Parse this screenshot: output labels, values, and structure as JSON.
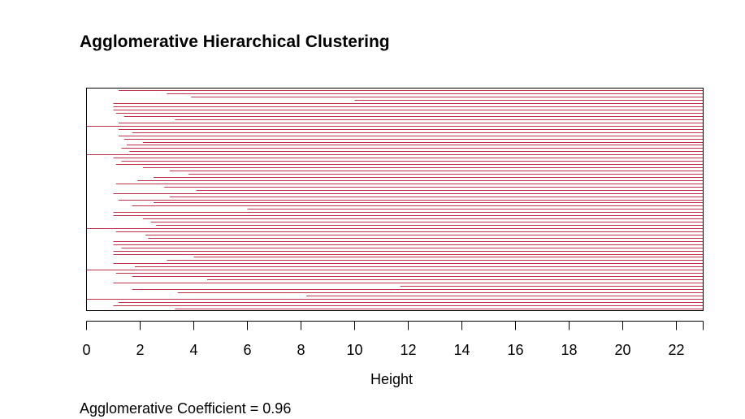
{
  "chart_data": {
    "type": "banner",
    "title": "Agglomerative Hierarchical Clustering",
    "xlabel": "Height",
    "xlim": [
      0,
      23
    ],
    "xticks": [
      0,
      2,
      4,
      6,
      8,
      10,
      12,
      14,
      16,
      18,
      20,
      22
    ],
    "tick_labels": [
      "0",
      "2",
      "4",
      "6",
      "8",
      "10",
      "12",
      "14",
      "16",
      "18",
      "20",
      "22"
    ],
    "bar_color": "#c0304a",
    "max_height": 23,
    "merge_heights": [
      1.2,
      3.0,
      3.9,
      10.0,
      1.0,
      1.0,
      1.0,
      1.1,
      1.4,
      3.3,
      1.2,
      0.0,
      1.2,
      1.7,
      1.2,
      1.4,
      2.1,
      1.5,
      1.3,
      1.6,
      0.0,
      1.0,
      1.3,
      1.1,
      2.1,
      3.1,
      3.8,
      2.5,
      1.9,
      1.1,
      2.9,
      4.1,
      1.0,
      3.1,
      1.2,
      2.5,
      1.7,
      6.0,
      1.0,
      1.0,
      2.1,
      2.4,
      2.6,
      0.0,
      1.1,
      2.2,
      2.3,
      1.0,
      1.0,
      1.3,
      1.0,
      1.0,
      4.0,
      3.0,
      1.0,
      1.8,
      0.0,
      1.1,
      1.7,
      4.5,
      1.0,
      11.7,
      1.7,
      3.4,
      8.2,
      0.0,
      1.2,
      1.0,
      3.3
    ],
    "footer": "Agglomerative Coefficient =  0.96"
  }
}
